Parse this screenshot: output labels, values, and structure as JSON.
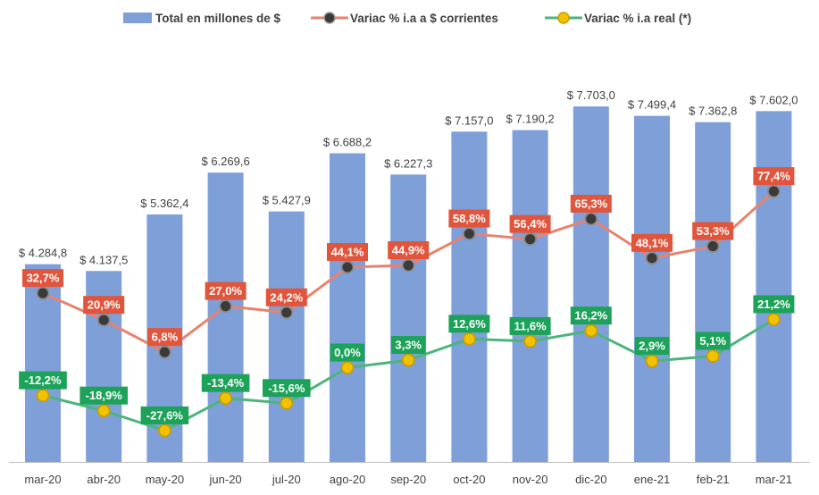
{
  "chart_data": {
    "type": "bar",
    "categories": [
      "mar-20",
      "abr-20",
      "may-20",
      "jun-20",
      "jul-20",
      "ago-20",
      "sep-20",
      "oct-20",
      "nov-20",
      "dic-20",
      "ene-21",
      "feb-21",
      "mar-21"
    ],
    "ylim": [
      0,
      8200
    ],
    "series": [
      {
        "name": "Total en millones de $",
        "kind": "bar",
        "color": "#7F9FD8",
        "values": [
          4284.8,
          4137.5,
          5362.4,
          6269.6,
          5427.9,
          6688.2,
          6227.3,
          7157.0,
          7190.2,
          7703.0,
          7499.4,
          7362.8,
          7602.0
        ],
        "labels": [
          "$ 4.284,8",
          "$ 4.137,5",
          "$ 5.362,4",
          "$ 6.269,6",
          "$ 5.427,9",
          "$ 6.688,2",
          "$ 6.227,3",
          "$ 7.157,0",
          "$ 7.190,2",
          "$ 7.703,0",
          "$ 7.499,4",
          "$ 7.362,8",
          "$ 7.602,0"
        ]
      },
      {
        "name": "Variac % i.a a $ corrientes",
        "kind": "line",
        "color": "#E8826E",
        "label_bg": "#E0553C",
        "marker_color": "#3A3A3A",
        "values": [
          32.7,
          20.9,
          6.8,
          27.0,
          24.2,
          44.1,
          44.9,
          58.8,
          56.4,
          65.3,
          48.1,
          53.3,
          77.4
        ],
        "labels": [
          "32,7%",
          "20,9%",
          "6,8%",
          "27,0%",
          "24,2%",
          "44,1%",
          "44,9%",
          "58,8%",
          "56,4%",
          "65,3%",
          "48,1%",
          "53,3%",
          "77,4%"
        ]
      },
      {
        "name": "Variac % i.a real (*)",
        "kind": "line",
        "color": "#4CB57E",
        "label_bg": "#1DA25A",
        "marker_color": "#F2C200",
        "values": [
          -12.2,
          -18.9,
          -27.6,
          -13.4,
          -15.6,
          0.0,
          3.3,
          12.6,
          11.6,
          16.2,
          2.9,
          5.1,
          21.2
        ],
        "labels": [
          "-12,2%",
          "-18,9%",
          "-27,6%",
          "-13,4%",
          "-15,6%",
          "0,0%",
          "3,3%",
          "12,6%",
          "11,6%",
          "16,2%",
          "2,9%",
          "5,1%",
          "21,2%"
        ]
      }
    ],
    "legend_position": "top",
    "grid": false
  }
}
